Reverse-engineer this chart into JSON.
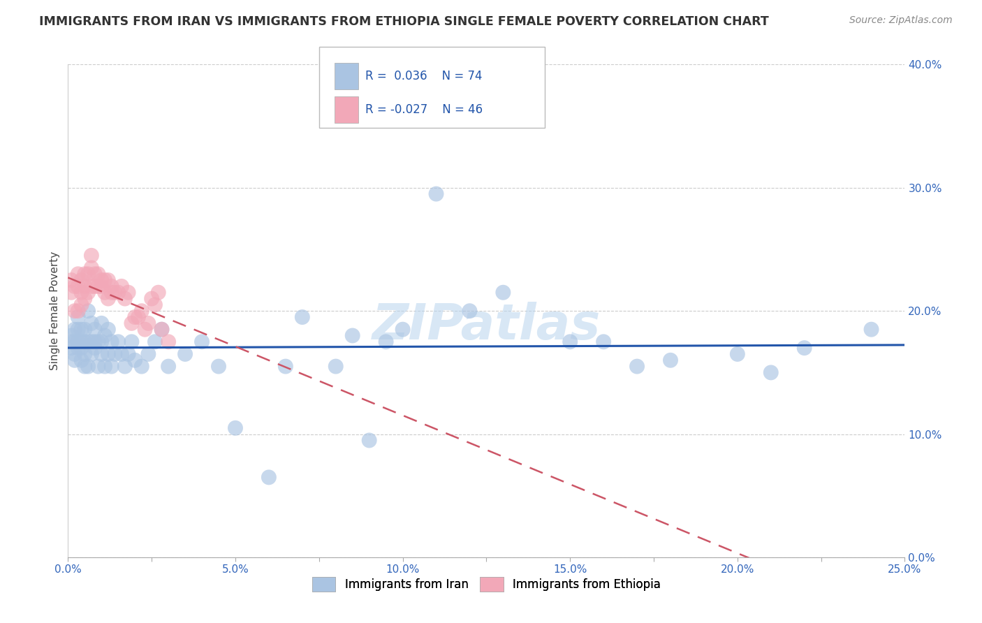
{
  "title": "IMMIGRANTS FROM IRAN VS IMMIGRANTS FROM ETHIOPIA SINGLE FEMALE POVERTY CORRELATION CHART",
  "source": "Source: ZipAtlas.com",
  "ylabel": "Single Female Poverty",
  "xlabel_iran": "Immigrants from Iran",
  "xlabel_ethiopia": "Immigrants from Ethiopia",
  "iran_R": 0.036,
  "iran_N": 74,
  "ethiopia_R": -0.027,
  "ethiopia_N": 46,
  "iran_color": "#aac4e2",
  "ethiopia_color": "#f2a8b8",
  "iran_line_color": "#2255aa",
  "ethiopia_line_color": "#cc5566",
  "watermark": "ZIPatlas",
  "xlim": [
    0.0,
    0.25
  ],
  "ylim": [
    0.0,
    0.4
  ],
  "xticks": [
    0.0,
    0.025,
    0.05,
    0.075,
    0.1,
    0.125,
    0.15,
    0.175,
    0.2,
    0.225,
    0.25
  ],
  "xtick_labels": [
    "0.0%",
    "",
    "5.0%",
    "",
    "10.0%",
    "",
    "15.0%",
    "",
    "20.0%",
    "",
    "25.0%"
  ],
  "yticks": [
    0.0,
    0.1,
    0.2,
    0.3,
    0.4
  ],
  "ytick_labels": [
    "0.0%",
    "10.0%",
    "20.0%",
    "30.0%",
    "40.0%"
  ],
  "iran_x": [
    0.001,
    0.001,
    0.001,
    0.002,
    0.002,
    0.002,
    0.002,
    0.003,
    0.003,
    0.003,
    0.003,
    0.004,
    0.004,
    0.004,
    0.004,
    0.005,
    0.005,
    0.005,
    0.005,
    0.006,
    0.006,
    0.006,
    0.007,
    0.007,
    0.007,
    0.008,
    0.008,
    0.008,
    0.009,
    0.009,
    0.01,
    0.01,
    0.01,
    0.011,
    0.011,
    0.012,
    0.012,
    0.013,
    0.013,
    0.014,
    0.015,
    0.016,
    0.017,
    0.018,
    0.019,
    0.02,
    0.022,
    0.024,
    0.026,
    0.028,
    0.03,
    0.035,
    0.04,
    0.045,
    0.05,
    0.06,
    0.065,
    0.07,
    0.08,
    0.085,
    0.09,
    0.095,
    0.1,
    0.11,
    0.12,
    0.13,
    0.15,
    0.16,
    0.17,
    0.18,
    0.2,
    0.21,
    0.22,
    0.24
  ],
  "iran_y": [
    0.17,
    0.175,
    0.18,
    0.16,
    0.165,
    0.175,
    0.185,
    0.17,
    0.175,
    0.185,
    0.195,
    0.16,
    0.17,
    0.175,
    0.185,
    0.155,
    0.165,
    0.175,
    0.185,
    0.155,
    0.175,
    0.2,
    0.165,
    0.175,
    0.19,
    0.17,
    0.175,
    0.185,
    0.155,
    0.175,
    0.165,
    0.175,
    0.19,
    0.155,
    0.18,
    0.165,
    0.185,
    0.155,
    0.175,
    0.165,
    0.175,
    0.165,
    0.155,
    0.165,
    0.175,
    0.16,
    0.155,
    0.165,
    0.175,
    0.185,
    0.155,
    0.165,
    0.175,
    0.155,
    0.105,
    0.065,
    0.155,
    0.195,
    0.155,
    0.18,
    0.095,
    0.175,
    0.185,
    0.295,
    0.2,
    0.215,
    0.175,
    0.175,
    0.155,
    0.16,
    0.165,
    0.15,
    0.17,
    0.185
  ],
  "ethiopia_x": [
    0.001,
    0.001,
    0.002,
    0.002,
    0.003,
    0.003,
    0.003,
    0.004,
    0.004,
    0.004,
    0.005,
    0.005,
    0.005,
    0.006,
    0.006,
    0.007,
    0.007,
    0.007,
    0.008,
    0.008,
    0.009,
    0.009,
    0.01,
    0.01,
    0.011,
    0.011,
    0.012,
    0.012,
    0.013,
    0.013,
    0.014,
    0.015,
    0.016,
    0.017,
    0.018,
    0.019,
    0.02,
    0.021,
    0.022,
    0.023,
    0.024,
    0.025,
    0.026,
    0.027,
    0.028,
    0.03
  ],
  "ethiopia_y": [
    0.215,
    0.225,
    0.2,
    0.22,
    0.2,
    0.22,
    0.23,
    0.205,
    0.215,
    0.225,
    0.21,
    0.22,
    0.23,
    0.215,
    0.23,
    0.22,
    0.235,
    0.245,
    0.22,
    0.23,
    0.22,
    0.23,
    0.22,
    0.225,
    0.215,
    0.225,
    0.21,
    0.225,
    0.22,
    0.215,
    0.215,
    0.215,
    0.22,
    0.21,
    0.215,
    0.19,
    0.195,
    0.195,
    0.2,
    0.185,
    0.19,
    0.21,
    0.205,
    0.215,
    0.185,
    0.175
  ]
}
